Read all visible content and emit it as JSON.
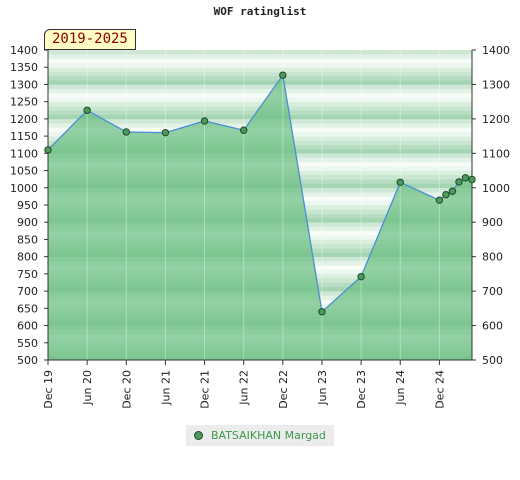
{
  "title": "WOF ratinglist",
  "range_badge": "2019-2025",
  "colors": {
    "line": "#4a8fd4",
    "marker": "#4e9a5e",
    "fill": "#6cbf84",
    "legend_text": "#3a9a4a"
  },
  "chart_data": {
    "type": "area",
    "title": "WOF ratinglist",
    "xlabel": "",
    "ylabel": "",
    "ylim": [
      500,
      1400
    ],
    "yticks": [
      500,
      550,
      600,
      650,
      700,
      750,
      800,
      850,
      900,
      950,
      1000,
      1050,
      1100,
      1150,
      1200,
      1250,
      1300,
      1350,
      1400
    ],
    "yticks_right": [
      500,
      600,
      700,
      800,
      900,
      1000,
      1100,
      1200,
      1300,
      1400
    ],
    "x_range": [
      "2019-12",
      "2025-05"
    ],
    "xticks": [
      {
        "label": "Dec 19",
        "date": "2019-12"
      },
      {
        "label": "Jun 20",
        "date": "2020-06"
      },
      {
        "label": "Dec 20",
        "date": "2020-12"
      },
      {
        "label": "Jun 21",
        "date": "2021-06"
      },
      {
        "label": "Dec 21",
        "date": "2021-12"
      },
      {
        "label": "Jun 22",
        "date": "2022-06"
      },
      {
        "label": "Dec 22",
        "date": "2022-12"
      },
      {
        "label": "Jun 23",
        "date": "2023-06"
      },
      {
        "label": "Dec 23",
        "date": "2023-12"
      },
      {
        "label": "Jun 24",
        "date": "2024-06"
      },
      {
        "label": "Dec 24",
        "date": "2024-12"
      }
    ],
    "grid": true,
    "legend_position": "bottom",
    "series": [
      {
        "name": "BATSAIKHAN Margad",
        "points": [
          {
            "date": "2019-12",
            "value": 1110
          },
          {
            "date": "2020-06",
            "value": 1225
          },
          {
            "date": "2020-12",
            "value": 1162
          },
          {
            "date": "2021-06",
            "value": 1160
          },
          {
            "date": "2021-12",
            "value": 1194
          },
          {
            "date": "2022-06",
            "value": 1167
          },
          {
            "date": "2022-12",
            "value": 1327
          },
          {
            "date": "2023-06",
            "value": 640
          },
          {
            "date": "2023-12",
            "value": 742
          },
          {
            "date": "2024-06",
            "value": 1016
          },
          {
            "date": "2024-12",
            "value": 964
          },
          {
            "date": "2025-01",
            "value": 980
          },
          {
            "date": "2025-02",
            "value": 990
          },
          {
            "date": "2025-03",
            "value": 1017
          },
          {
            "date": "2025-04",
            "value": 1029
          },
          {
            "date": "2025-05",
            "value": 1024
          }
        ]
      }
    ]
  }
}
